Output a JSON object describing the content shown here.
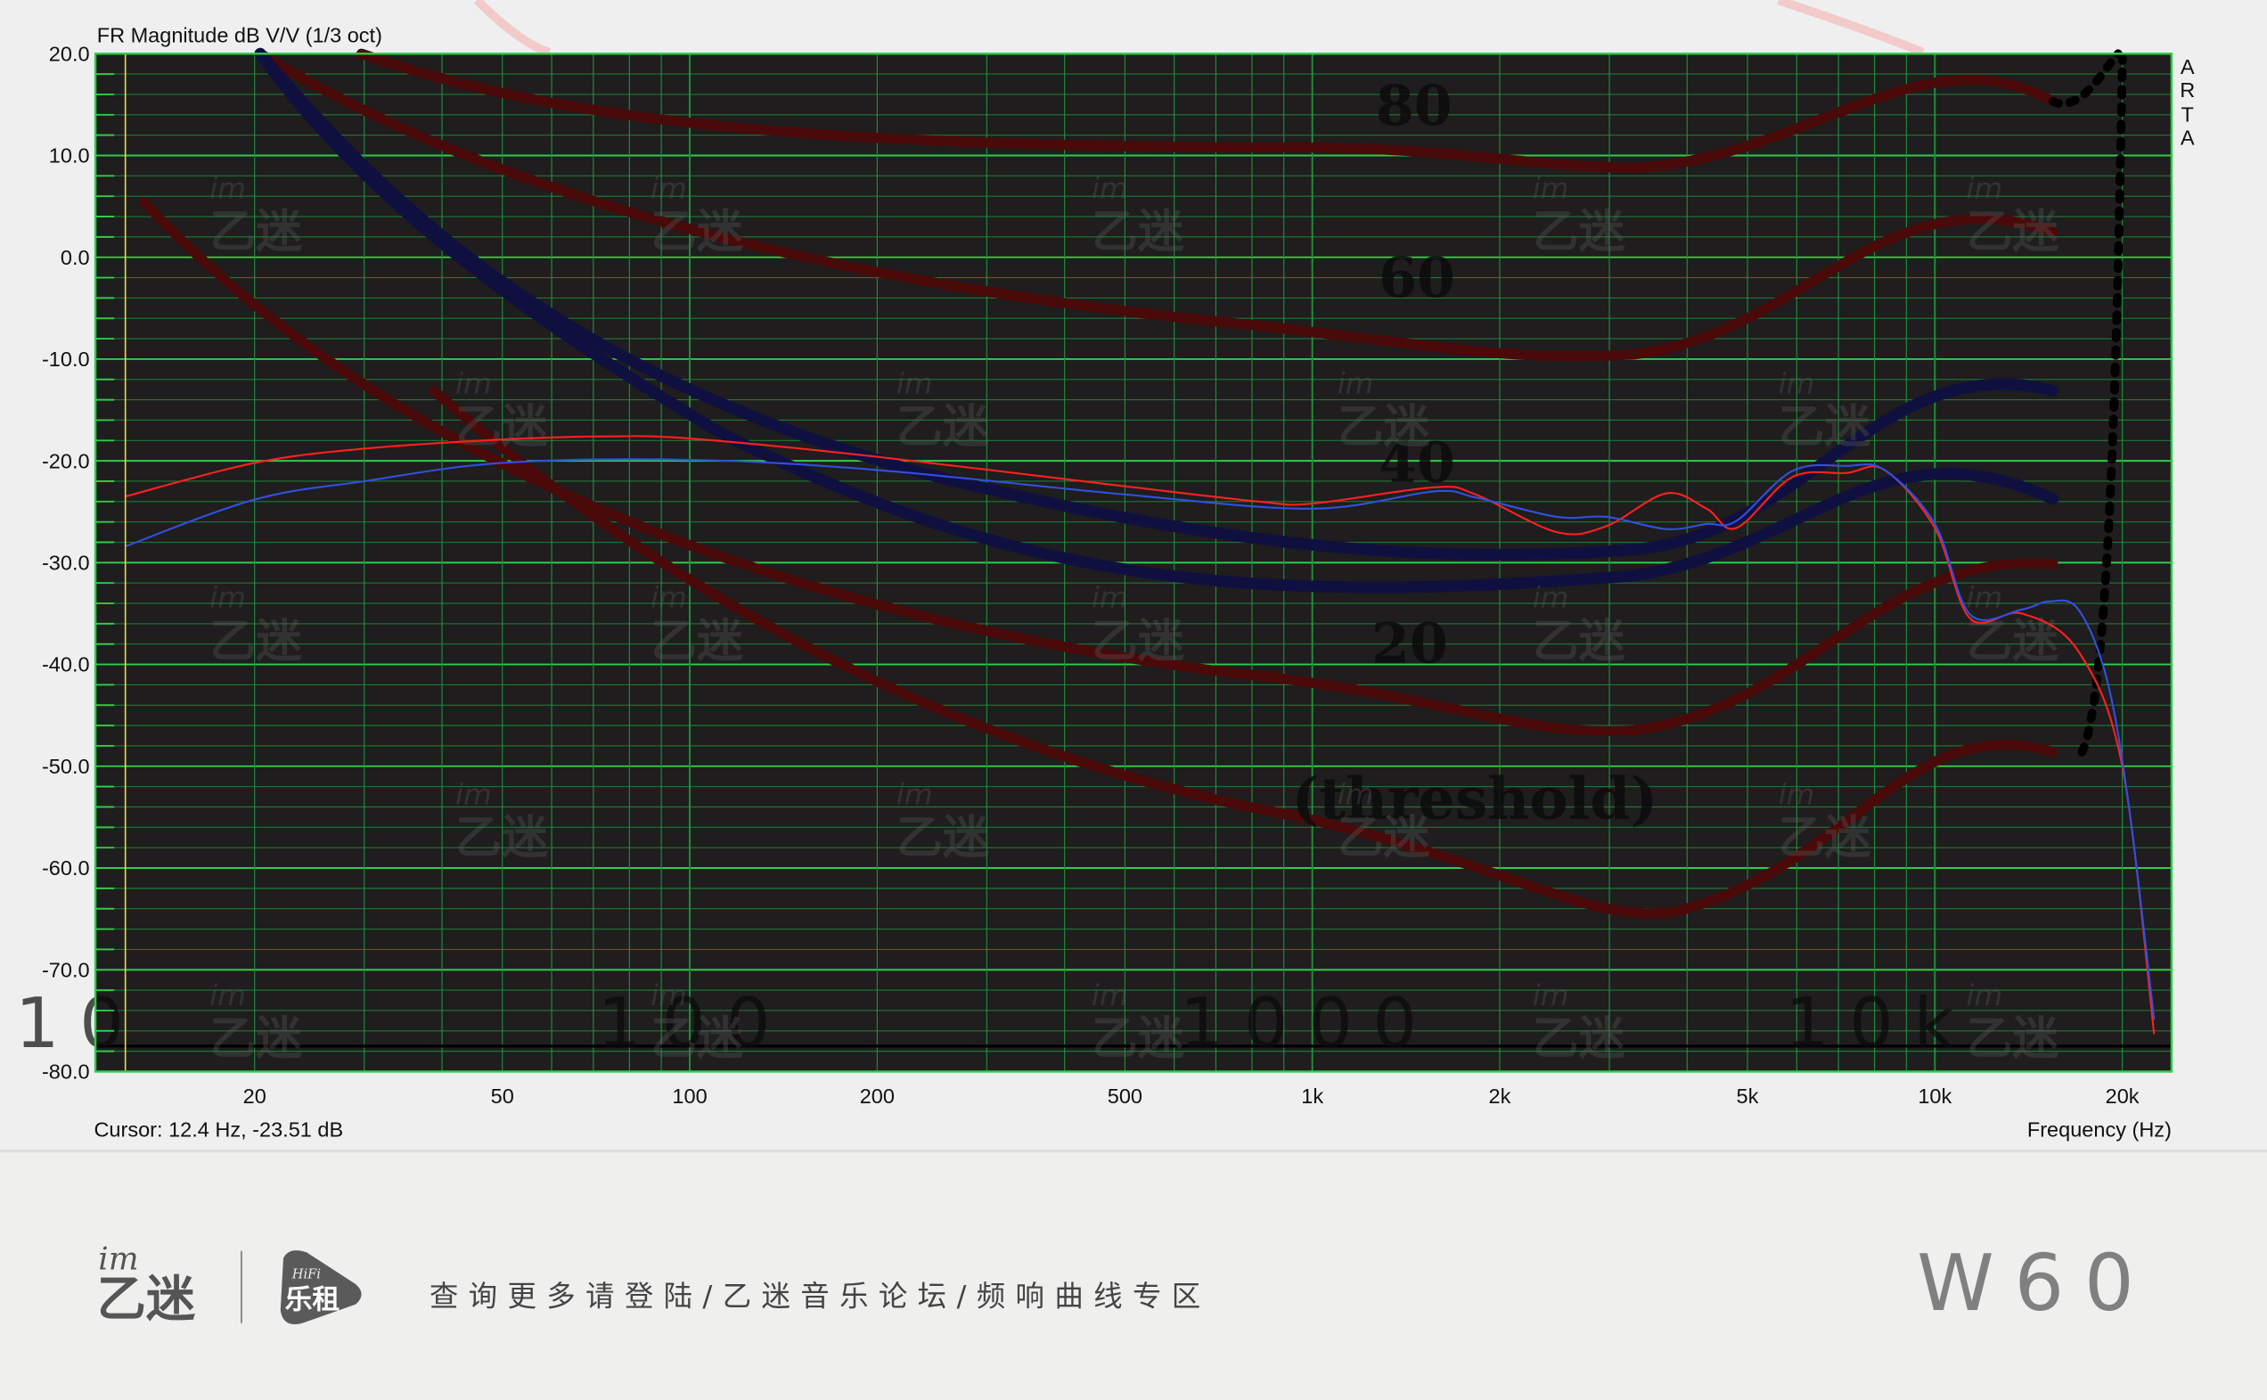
{
  "chart_data": {
    "type": "line",
    "title": "FR Magnitude dB V/V (1/3 oct)",
    "xlabel": "Frequency (Hz)",
    "ylabel": "",
    "xscale": "log",
    "xlim": [
      11.1,
      24000
    ],
    "ylim": [
      -80,
      20
    ],
    "grid": true,
    "x_ticks": [
      {
        "value": 20,
        "label": "20"
      },
      {
        "value": 50,
        "label": "50"
      },
      {
        "value": 100,
        "label": "100"
      },
      {
        "value": 200,
        "label": "200"
      },
      {
        "value": 500,
        "label": "500"
      },
      {
        "value": 1000,
        "label": "1k"
      },
      {
        "value": 2000,
        "label": "2k"
      },
      {
        "value": 5000,
        "label": "5k"
      },
      {
        "value": 10000,
        "label": "10k"
      },
      {
        "value": 20000,
        "label": "20k"
      }
    ],
    "y_ticks": [
      20,
      10,
      0,
      -10,
      -20,
      -30,
      -40,
      -50,
      -60,
      -70,
      -80
    ],
    "y_tick_labels": [
      "20.0",
      "10.0",
      "0.0",
      "-10.0",
      "-20.0",
      "-30.0",
      "-40.0",
      "-50.0",
      "-60.0",
      "-70.0",
      "-80.0"
    ],
    "cursor": {
      "frequency": 12.4,
      "text": "Cursor: 12.4 Hz, -23.51 dB"
    },
    "side_label": [
      "A",
      "R",
      "T",
      "A"
    ],
    "series": [
      {
        "color": "#ff2020",
        "points": [
          [
            12.4,
            -23.5
          ],
          [
            20,
            -20.2
          ],
          [
            30,
            -18.8
          ],
          [
            50,
            -17.9
          ],
          [
            73,
            -17.6
          ],
          [
            100,
            -17.8
          ],
          [
            200,
            -19.6
          ],
          [
            500,
            -22.5
          ],
          [
            820,
            -24.0
          ],
          [
            1000,
            -24.2
          ],
          [
            1570,
            -22.6
          ],
          [
            1830,
            -23.3
          ],
          [
            2470,
            -27.0
          ],
          [
            2970,
            -26.4
          ],
          [
            3700,
            -23.2
          ],
          [
            4300,
            -24.7
          ],
          [
            4800,
            -26.6
          ],
          [
            5900,
            -21.6
          ],
          [
            7200,
            -21.2
          ],
          [
            8300,
            -20.9
          ],
          [
            10000,
            -26.6
          ],
          [
            11400,
            -35.5
          ],
          [
            13800,
            -35.0
          ],
          [
            17000,
            -38.7
          ],
          [
            20000,
            -50.0
          ],
          [
            22500,
            -76.3
          ]
        ]
      },
      {
        "color": "#3050e0",
        "points": [
          [
            12.4,
            -28.4
          ],
          [
            20,
            -23.8
          ],
          [
            30,
            -22.0
          ],
          [
            50,
            -20.2
          ],
          [
            100,
            -19.9
          ],
          [
            200,
            -20.9
          ],
          [
            500,
            -23.3
          ],
          [
            1000,
            -24.7
          ],
          [
            1570,
            -23.0
          ],
          [
            1830,
            -23.6
          ],
          [
            2470,
            -25.5
          ],
          [
            2970,
            -25.5
          ],
          [
            3700,
            -26.7
          ],
          [
            4300,
            -26.2
          ],
          [
            4800,
            -25.9
          ],
          [
            5900,
            -21.0
          ],
          [
            7200,
            -20.5
          ],
          [
            8300,
            -20.9
          ],
          [
            10000,
            -26.2
          ],
          [
            11400,
            -35.1
          ],
          [
            13800,
            -34.6
          ],
          [
            15300,
            -33.8
          ],
          [
            17000,
            -34.6
          ],
          [
            18900,
            -41.5
          ],
          [
            20500,
            -54.0
          ],
          [
            22500,
            -74.9
          ]
        ]
      }
    ],
    "colors": {
      "plot_bg": "#1f1d1d",
      "grid": "#1f8f3c",
      "grid_major": "#2ecc4a",
      "cursor": "#e8d84a"
    }
  },
  "overlay": {
    "contour_labels": [
      "80",
      "60",
      "40",
      "20",
      "(threshold)"
    ],
    "big_labels": [
      "10",
      "100",
      "1000",
      "10k"
    ],
    "watermark": {
      "top": "im",
      "bottom": "乙迷"
    }
  },
  "footer": {
    "logo_im": "im",
    "logo_name": "乙迷",
    "logo2_top": "HiFi",
    "logo2_name": "乐租",
    "tagline": "查询更多请登陆/乙迷音乐论坛/频响曲线专区",
    "model": "W60"
  }
}
